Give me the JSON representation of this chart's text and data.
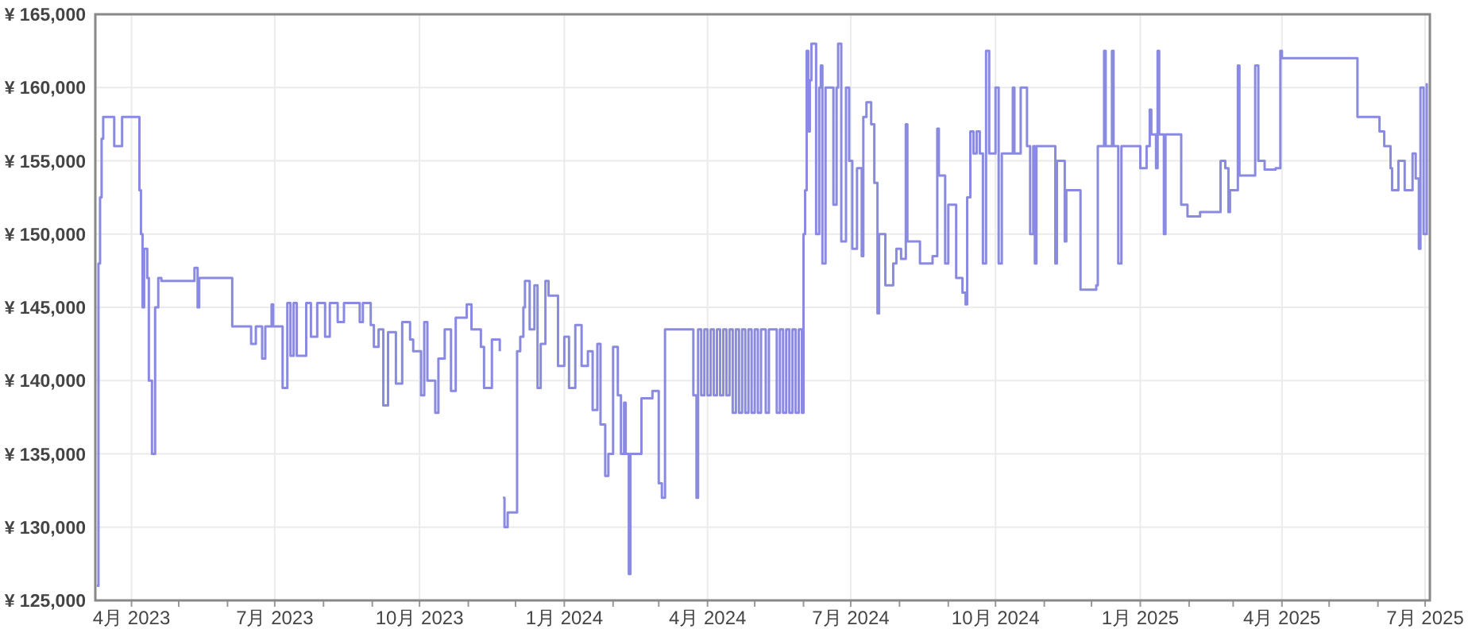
{
  "chart_data": {
    "type": "step",
    "xlim": [
      "2023-03-09",
      "2025-07-04"
    ],
    "ylim": [
      125000,
      165000
    ],
    "xticks": [
      {
        "value": "2023-04-01",
        "label": "4月 2023"
      },
      {
        "value": "2023-05-01",
        "label": null
      },
      {
        "value": "2023-06-01",
        "label": null
      },
      {
        "value": "2023-07-01",
        "label": "7月 2023"
      },
      {
        "value": "2023-08-01",
        "label": null
      },
      {
        "value": "2023-09-01",
        "label": null
      },
      {
        "value": "2023-10-01",
        "label": "10月 2023"
      },
      {
        "value": "2023-11-01",
        "label": null
      },
      {
        "value": "2023-12-01",
        "label": null
      },
      {
        "value": "2024-01-01",
        "label": "1月 2024"
      },
      {
        "value": "2024-02-01",
        "label": null
      },
      {
        "value": "2024-03-01",
        "label": null
      },
      {
        "value": "2024-04-01",
        "label": "4月 2024"
      },
      {
        "value": "2024-05-01",
        "label": null
      },
      {
        "value": "2024-06-01",
        "label": null
      },
      {
        "value": "2024-07-01",
        "label": "7月 2024"
      },
      {
        "value": "2024-08-01",
        "label": null
      },
      {
        "value": "2024-09-01",
        "label": null
      },
      {
        "value": "2024-10-01",
        "label": "10月 2024"
      },
      {
        "value": "2024-11-01",
        "label": null
      },
      {
        "value": "2024-12-01",
        "label": null
      },
      {
        "value": "2025-01-01",
        "label": "1月 2025"
      },
      {
        "value": "2025-02-01",
        "label": null
      },
      {
        "value": "2025-03-01",
        "label": null
      },
      {
        "value": "2025-04-01",
        "label": "4月 2025"
      },
      {
        "value": "2025-05-01",
        "label": null
      },
      {
        "value": "2025-06-01",
        "label": null
      },
      {
        "value": "2025-07-01",
        "label": "7月 2025"
      }
    ],
    "yticks": [
      {
        "value": 125000,
        "label": "¥ 125,000"
      },
      {
        "value": 130000,
        "label": "¥ 130,000"
      },
      {
        "value": 135000,
        "label": "¥ 135,000"
      },
      {
        "value": 140000,
        "label": "¥ 140,000"
      },
      {
        "value": 145000,
        "label": "¥ 145,000"
      },
      {
        "value": 150000,
        "label": "¥ 150,000"
      },
      {
        "value": 155000,
        "label": "¥ 155,000"
      },
      {
        "value": 160000,
        "label": "¥ 160,000"
      },
      {
        "value": 165000,
        "label": "¥ 165,000"
      }
    ],
    "grid": true,
    "series": [
      {
        "color": "#8a8ae0",
        "x": [
          "2023-03-10",
          "2023-03-11",
          "2023-03-12",
          "2023-03-13",
          "2023-03-14",
          "2023-03-21",
          "2023-03-26",
          "2023-04-06",
          "2023-04-07",
          "2023-04-08",
          "2023-04-09",
          "2023-04-11",
          "2023-04-12",
          "2023-04-14",
          "2023-04-16",
          "2023-04-18",
          "2023-04-20",
          "2023-05-11",
          "2023-05-13",
          "2023-05-14",
          "2023-06-04",
          "2023-06-16",
          "2023-06-19",
          "2023-06-23",
          "2023-06-25",
          "2023-06-29",
          "2023-06-30",
          "2023-07-06",
          "2023-07-09",
          "2023-07-11",
          "2023-07-13",
          "2023-07-15",
          "2023-07-21",
          "2023-07-24",
          "2023-07-28",
          "2023-08-02",
          "2023-08-05",
          "2023-08-10",
          "2023-08-14",
          "2023-08-24",
          "2023-08-26",
          "2023-08-31",
          "2023-09-02",
          "2023-09-05",
          "2023-09-08",
          "2023-09-11",
          "2023-09-16",
          "2023-09-20",
          "2023-09-25",
          "2023-09-27",
          "2023-10-02",
          "2023-10-04",
          "2023-10-06",
          "2023-10-11",
          "2023-10-13",
          "2023-10-17",
          "2023-10-21",
          "2023-10-24",
          "2023-10-31",
          "2023-11-03",
          "2023-11-09",
          "2023-11-11",
          "2023-11-16",
          "2023-11-21",
          "2023-11-22",
          "2023-11-23",
          "2023-11-24",
          "2023-11-26",
          "2023-12-02",
          "2023-12-04",
          "2023-12-06",
          "2023-12-07",
          "2023-12-10",
          "2023-12-13",
          "2023-12-15",
          "2023-12-17",
          "2023-12-20",
          "2023-12-22",
          "2023-12-28",
          "2024-01-01",
          "2024-01-04",
          "2024-01-08",
          "2024-01-12",
          "2024-01-16",
          "2024-01-19",
          "2024-01-22",
          "2024-01-24",
          "2024-01-27",
          "2024-01-29",
          "2024-02-01",
          "2024-02-04",
          "2024-02-06",
          "2024-02-08",
          "2024-02-09",
          "2024-02-11",
          "2024-02-12",
          "2024-02-19",
          "2024-02-26",
          "2024-03-01",
          "2024-03-03",
          "2024-03-05",
          "2024-03-23",
          "2024-03-25",
          "2024-03-26",
          "2024-03-28",
          "2024-03-30",
          "2024-04-01",
          "2024-04-03",
          "2024-04-05",
          "2024-04-07",
          "2024-04-09",
          "2024-04-11",
          "2024-04-13",
          "2024-04-15",
          "2024-04-17",
          "2024-04-19",
          "2024-04-21",
          "2024-04-23",
          "2024-04-25",
          "2024-04-27",
          "2024-04-29",
          "2024-05-01",
          "2024-05-03",
          "2024-05-05",
          "2024-05-08",
          "2024-05-10",
          "2024-05-15",
          "2024-05-17",
          "2024-05-19",
          "2024-05-21",
          "2024-05-23",
          "2024-05-25",
          "2024-05-27",
          "2024-05-29",
          "2024-05-31",
          "2024-06-01",
          "2024-06-02",
          "2024-06-03",
          "2024-06-04",
          "2024-06-05",
          "2024-06-06",
          "2024-06-09",
          "2024-06-11",
          "2024-06-12",
          "2024-06-13",
          "2024-06-15",
          "2024-06-20",
          "2024-06-22",
          "2024-06-23",
          "2024-06-25",
          "2024-06-28",
          "2024-06-30",
          "2024-07-02",
          "2024-07-05",
          "2024-07-08",
          "2024-07-09",
          "2024-07-11",
          "2024-07-14",
          "2024-07-16",
          "2024-07-18",
          "2024-07-19",
          "2024-07-23",
          "2024-07-28",
          "2024-07-30",
          "2024-08-02",
          "2024-08-05",
          "2024-08-06",
          "2024-08-14",
          "2024-08-22",
          "2024-08-25",
          "2024-08-26",
          "2024-08-30",
          "2024-09-01",
          "2024-09-06",
          "2024-09-10",
          "2024-09-12",
          "2024-09-13",
          "2024-09-15",
          "2024-09-17",
          "2024-09-19",
          "2024-09-21",
          "2024-09-23",
          "2024-09-25",
          "2024-09-27",
          "2024-10-01",
          "2024-10-03",
          "2024-10-05",
          "2024-10-12",
          "2024-10-13",
          "2024-10-17",
          "2024-10-21",
          "2024-10-23",
          "2024-10-25",
          "2024-10-26",
          "2024-10-27",
          "2024-11-08",
          "2024-11-09",
          "2024-11-14",
          "2024-11-15",
          "2024-11-24",
          "2024-12-04",
          "2024-12-05",
          "2024-12-09",
          "2024-12-10",
          "2024-12-14",
          "2024-12-15",
          "2024-12-18",
          "2024-12-20",
          "2025-01-01",
          "2025-01-05",
          "2025-01-07",
          "2025-01-08",
          "2025-01-11",
          "2025-01-12",
          "2025-01-13",
          "2025-01-16",
          "2025-01-17",
          "2025-01-27",
          "2025-01-31",
          "2025-02-08",
          "2025-02-21",
          "2025-02-24",
          "2025-02-26",
          "2025-02-27",
          "2025-03-04",
          "2025-03-05",
          "2025-03-15",
          "2025-03-17",
          "2025-03-21",
          "2025-03-28",
          "2025-03-31",
          "2025-04-01",
          "2025-05-19",
          "2025-06-02",
          "2025-06-05",
          "2025-06-09",
          "2025-06-10",
          "2025-06-14",
          "2025-06-18",
          "2025-06-23",
          "2025-06-25",
          "2025-06-27",
          "2025-06-28",
          "2025-06-30",
          "2025-07-02"
        ],
        "values": [
          126000,
          148000,
          152500,
          156500,
          158000,
          156000,
          158000,
          153000,
          150000,
          145000,
          149000,
          147000,
          140000,
          135000,
          145000,
          147000,
          146800,
          147700,
          145000,
          147000,
          143700,
          142500,
          143700,
          141500,
          143700,
          145200,
          143700,
          139500,
          145300,
          141700,
          145300,
          141700,
          145300,
          143000,
          145300,
          143000,
          145300,
          144000,
          145300,
          144000,
          145300,
          143800,
          142300,
          143500,
          138300,
          143300,
          139800,
          144000,
          142800,
          142000,
          139000,
          144000,
          140000,
          137800,
          141500,
          143500,
          139300,
          144300,
          145200,
          143500,
          142300,
          139500,
          142800,
          142000,
          null,
          132000,
          130000,
          131000,
          142000,
          143000,
          145000,
          146800,
          143500,
          146500,
          139500,
          142500,
          146800,
          145800,
          141000,
          143000,
          139500,
          143800,
          141000,
          142000,
          138000,
          142500,
          137000,
          133500,
          135000,
          142300,
          139000,
          135000,
          138500,
          135000,
          126800,
          135000,
          138800,
          139300,
          133000,
          132000,
          143500,
          139000,
          132000,
          143500,
          139000,
          143500,
          139000,
          143500,
          139000,
          143500,
          139000,
          143500,
          139000,
          143500,
          137800,
          143500,
          137800,
          143500,
          137800,
          143500,
          137800,
          143500,
          137800,
          143500,
          137800,
          143500,
          137800,
          143500,
          137800,
          143500,
          137800,
          143500,
          137800,
          143500,
          137800,
          150000,
          153000,
          162500,
          157000,
          160500,
          163000,
          150000,
          160000,
          161500,
          148000,
          160000,
          152000,
          160000,
          163000,
          149500,
          160000,
          155000,
          149000,
          154500,
          148500,
          158000,
          159000,
          157500,
          153500,
          144600,
          150000,
          146500,
          148000,
          149000,
          148300,
          157500,
          149500,
          148000,
          148500,
          157200,
          154000,
          148000,
          152000,
          147000,
          146000,
          145200,
          152500,
          157000,
          155500,
          157000,
          155500,
          148000,
          162500,
          155500,
          160000,
          148000,
          155500,
          160000,
          155500,
          160000,
          156000,
          150000,
          156000,
          148000,
          156000,
          148000,
          155000,
          149500,
          153000,
          146200,
          146500,
          156000,
          162500,
          156000,
          162500,
          156000,
          148000,
          156000,
          154500,
          156000,
          158500,
          156800,
          154500,
          162500,
          156800,
          150000,
          156800,
          152000,
          151200,
          151500,
          155000,
          154500,
          151500,
          153000,
          161500,
          154000,
          161500,
          155000,
          154400,
          154500,
          162500,
          162000,
          158000,
          157000,
          156000,
          154500,
          153000,
          155000,
          153000,
          155500,
          153800,
          149000,
          160000,
          150000,
          160300
        ]
      }
    ]
  }
}
